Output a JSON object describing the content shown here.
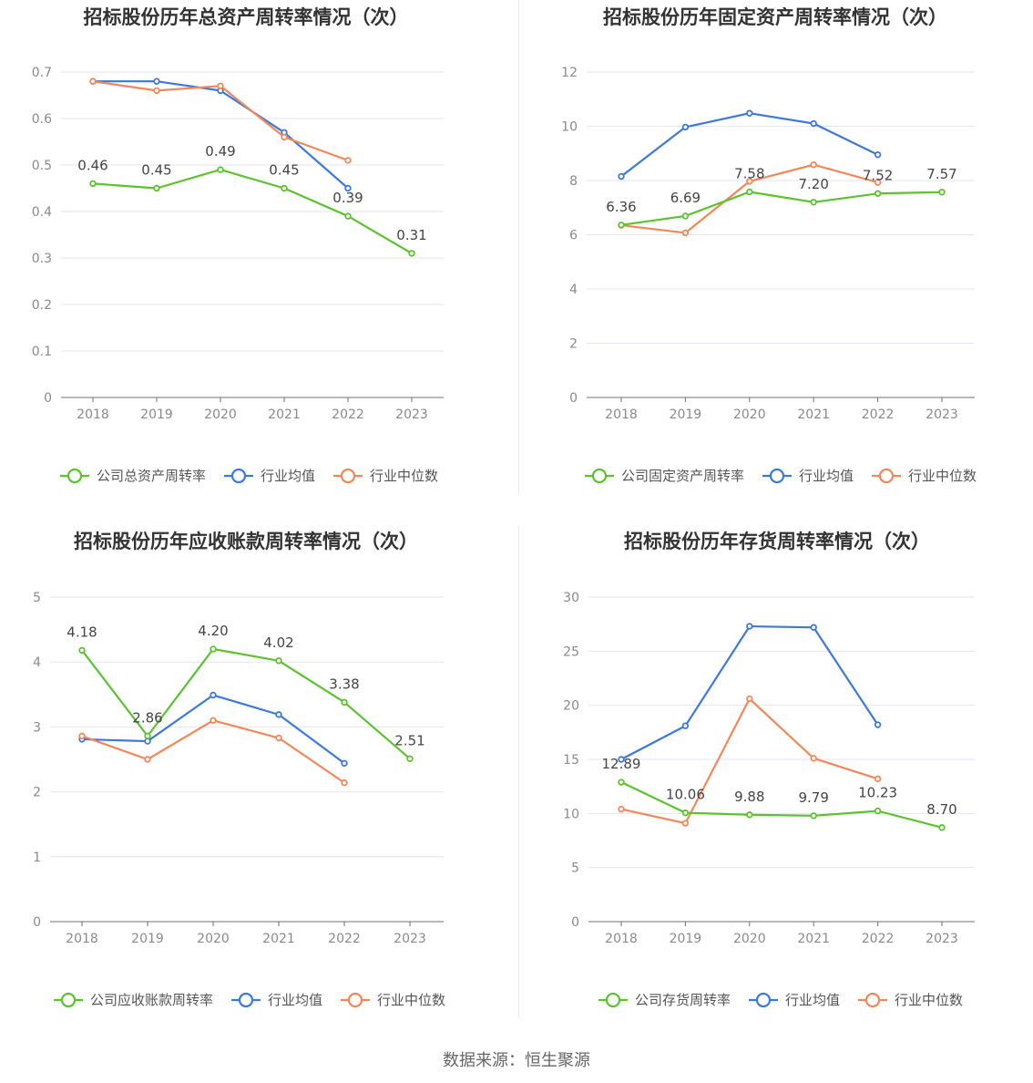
{
  "source_label": "数据来源：恒生聚源",
  "colors": {
    "company": "#5cc22e",
    "avg": "#3d78db",
    "median": "#f2885a"
  },
  "chart_data": [
    {
      "type": "line",
      "title": "招标股份历年总资产周转率情况（次）",
      "categories": [
        "2018",
        "2019",
        "2020",
        "2021",
        "2022",
        "2023"
      ],
      "ylim": [
        0,
        0.7
      ],
      "yticks": [
        0,
        0.1,
        0.2,
        0.3,
        0.4,
        0.5,
        0.6,
        0.7
      ],
      "grid": true,
      "legend_position": "bottom",
      "series": [
        {
          "name": "公司总资产周转率",
          "values": [
            0.46,
            0.45,
            0.49,
            0.45,
            0.39,
            0.31
          ],
          "labels": [
            "0.46",
            "0.45",
            "0.49",
            "0.45",
            "0.39",
            "0.31"
          ]
        },
        {
          "name": "行业均值",
          "values": [
            0.68,
            0.68,
            0.66,
            0.57,
            0.45,
            null
          ]
        },
        {
          "name": "行业中位数",
          "values": [
            0.68,
            0.66,
            0.67,
            0.56,
            0.51,
            null
          ]
        }
      ]
    },
    {
      "type": "line",
      "title": "招标股份历年固定资产周转率情况（次）",
      "categories": [
        "2018",
        "2019",
        "2020",
        "2021",
        "2022",
        "2023"
      ],
      "ylim": [
        0,
        12
      ],
      "yticks": [
        0,
        2,
        4,
        6,
        8,
        10,
        12
      ],
      "grid": true,
      "legend_position": "bottom",
      "series": [
        {
          "name": "公司固定资产周转率",
          "values": [
            6.36,
            6.69,
            7.58,
            7.2,
            7.52,
            7.57
          ],
          "labels": [
            "6.36",
            "6.69",
            "7.58",
            "7.20",
            "7.52",
            "7.57"
          ]
        },
        {
          "name": "行业均值",
          "values": [
            8.15,
            9.97,
            10.48,
            10.1,
            8.95,
            null
          ]
        },
        {
          "name": "行业中位数",
          "values": [
            6.35,
            6.07,
            7.97,
            8.58,
            7.93,
            null
          ]
        }
      ]
    },
    {
      "type": "line",
      "title": "招标股份历年应收账款周转率情况（次）",
      "categories": [
        "2018",
        "2019",
        "2020",
        "2021",
        "2022",
        "2023"
      ],
      "ylim": [
        0,
        5
      ],
      "yticks": [
        0,
        1,
        2,
        3,
        4,
        5
      ],
      "grid": true,
      "legend_position": "bottom",
      "series": [
        {
          "name": "公司应收账款周转率",
          "values": [
            4.18,
            2.86,
            4.2,
            4.02,
            3.38,
            2.51
          ],
          "labels": [
            "4.18",
            "2.86",
            "4.20",
            "4.02",
            "3.38",
            "2.51"
          ]
        },
        {
          "name": "行业均值",
          "values": [
            2.81,
            2.78,
            3.49,
            3.19,
            2.44,
            null
          ]
        },
        {
          "name": "行业中位数",
          "values": [
            2.86,
            2.5,
            3.1,
            2.83,
            2.14,
            null
          ]
        }
      ]
    },
    {
      "type": "line",
      "title": "招标股份历年存货周转率情况（次）",
      "categories": [
        "2018",
        "2019",
        "2020",
        "2021",
        "2022",
        "2023"
      ],
      "ylim": [
        0,
        30
      ],
      "yticks": [
        0,
        5,
        10,
        15,
        20,
        25,
        30
      ],
      "grid": true,
      "legend_position": "bottom",
      "series": [
        {
          "name": "公司存货周转率",
          "values": [
            12.89,
            10.06,
            9.88,
            9.79,
            10.23,
            8.7
          ],
          "labels": [
            "12.89",
            "10.06",
            "9.88",
            "9.79",
            "10.23",
            "8.70"
          ]
        },
        {
          "name": "行业均值",
          "values": [
            15.0,
            18.1,
            27.3,
            27.2,
            18.2,
            null
          ]
        },
        {
          "name": "行业中位数",
          "values": [
            10.4,
            9.1,
            20.6,
            15.1,
            13.2,
            null
          ]
        }
      ]
    }
  ]
}
